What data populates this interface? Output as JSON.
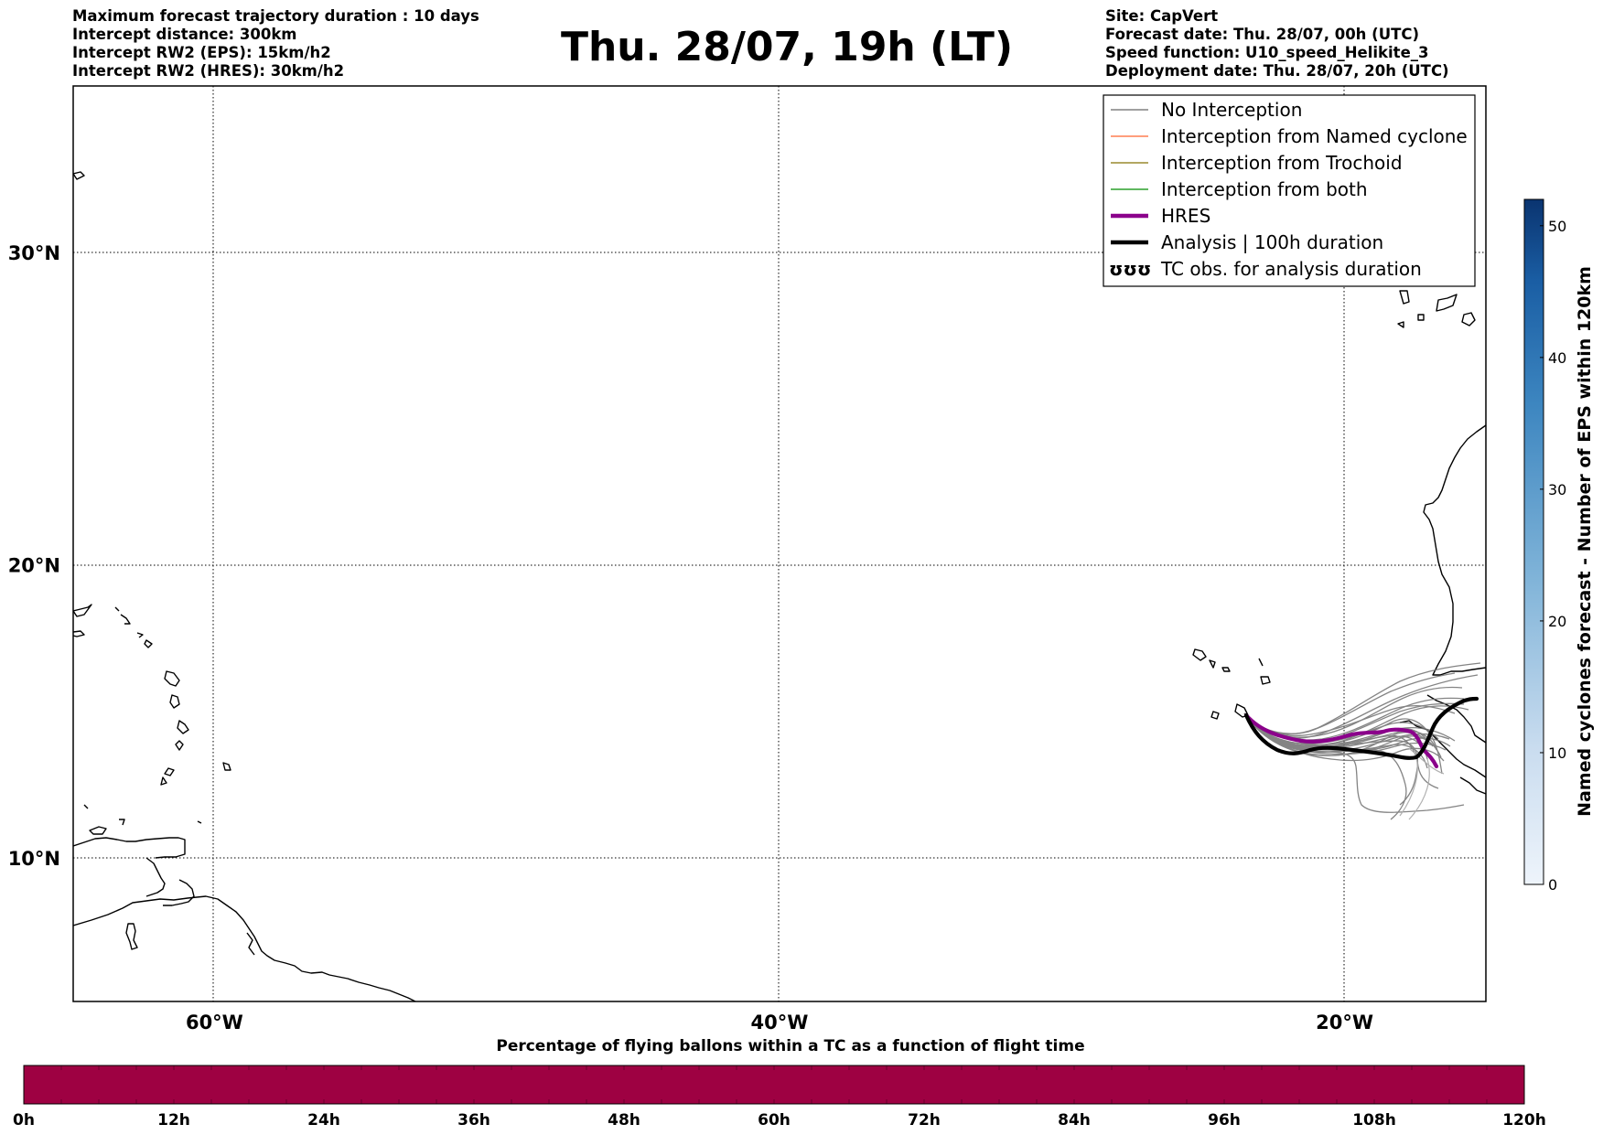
{
  "header_left": [
    "Maximum forecast trajectory duration : 10 days",
    "Intercept distance: 300km",
    "Intercept RW2 (EPS):  15km/h2",
    "Intercept RW2 (HRES): 30km/h2"
  ],
  "title": "Thu. 28/07, 19h (LT)",
  "header_right": [
    "Site: CapVert",
    "Forecast date: Thu. 28/07, 00h (UTC)",
    "Speed function: U10_speed_Helikite_3",
    "Deployment date: Thu. 28/07, 20h (UTC)"
  ],
  "map": {
    "lat_labels": [
      {
        "value": 30,
        "label": "30°N"
      },
      {
        "value": 20,
        "label": "20°N"
      },
      {
        "value": 10,
        "label": "10°N"
      }
    ],
    "lon_labels": [
      {
        "value": -60,
        "label": "60°W"
      },
      {
        "value": -40,
        "label": "40°W"
      },
      {
        "value": -20,
        "label": "20°W"
      }
    ],
    "lon_range": [
      -65,
      -15
    ],
    "lat_range": [
      5.3,
      34.6
    ]
  },
  "legend": [
    {
      "label": "No Interception",
      "color": "#808080",
      "style": "thin"
    },
    {
      "label": "Interception from Named cyclone",
      "color": "#ff7f50",
      "style": "thin"
    },
    {
      "label": "Interception from Trochoid",
      "color": "#9a8a2e",
      "style": "thin"
    },
    {
      "label": "Interception from both",
      "color": "#2ca02c",
      "style": "thin"
    },
    {
      "label": "HRES",
      "color": "#8b008b",
      "style": "thick"
    },
    {
      "label": "Analysis | 100h duration",
      "color": "#000000",
      "style": "thick"
    },
    {
      "label": "TC obs. for analysis duration",
      "color": "#000000",
      "style": "symbol",
      "symbol": "ʊʊʊ"
    }
  ],
  "colorbar_right": {
    "label": "Named cyclones forecast - Number of EPS within 120km",
    "ticks": [
      "0",
      "10",
      "20",
      "30",
      "40",
      "50"
    ],
    "min": 0,
    "max": 52
  },
  "colorbar_bottom": {
    "label": "Percentage of flying ballons within a TC as a function of flight time",
    "ticks": [
      "0h",
      "12h",
      "24h",
      "36h",
      "48h",
      "60h",
      "72h",
      "84h",
      "96h",
      "108h",
      "120h"
    ],
    "color": "#9e0142"
  }
}
